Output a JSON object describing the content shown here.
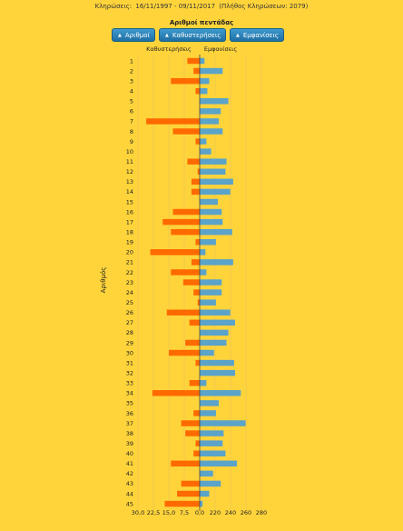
{
  "header": {
    "draws_label": "Κληρώσεις:",
    "date_range": "16/11/1997 - 09/11/2017",
    "count_text": "(Πλήθος Κληρώσεων: 2079)"
  },
  "buttons": {
    "number": "Αριθμοί",
    "delay": "Καθυστερήσεις",
    "appearances": "Εμφανίσεις"
  },
  "chart_data": {
    "type": "bar",
    "title": "Αριθμοί πεντάδας",
    "ylabel": "Αριθμός",
    "left_header": "Καθυστερήσεις",
    "right_header": "Εμφανίσεις",
    "categories": [
      "1",
      "2",
      "3",
      "4",
      "5",
      "6",
      "7",
      "8",
      "9",
      "10",
      "11",
      "12",
      "13",
      "14",
      "15",
      "16",
      "17",
      "18",
      "19",
      "20",
      "21",
      "22",
      "23",
      "24",
      "25",
      "26",
      "27",
      "28",
      "29",
      "30",
      "31",
      "32",
      "33",
      "34",
      "35",
      "36",
      "37",
      "38",
      "39",
      "40",
      "41",
      "42",
      "43",
      "44",
      "45"
    ],
    "delay_ticks": [
      "30,0",
      "22,5",
      "15,0",
      "7,5",
      "0,0"
    ],
    "appear_ticks": [
      "20",
      "220",
      "240",
      "260",
      "280"
    ],
    "delay_max": 30,
    "appear_max": 280,
    "series": [
      {
        "name": "Καθυστερήσεις",
        "color": "#ff6a00",
        "values": [
          6,
          3,
          14,
          2,
          0,
          0,
          26,
          13,
          2,
          0,
          6,
          1,
          4,
          4,
          0,
          13,
          18,
          14,
          2,
          24,
          4,
          14,
          8,
          3,
          1,
          16,
          5,
          0,
          7,
          15,
          2,
          0,
          5,
          23,
          0,
          3,
          9,
          7,
          2,
          3,
          14,
          0,
          9,
          11,
          17
        ]
      },
      {
        "name": "Εμφανίσεις",
        "color": "#5ba3c9",
        "values": [
          185,
          204,
          190,
          188,
          210,
          202,
          200,
          204,
          187,
          192,
          208,
          207,
          215,
          212,
          199,
          203,
          204,
          214,
          197,
          186,
          215,
          187,
          203,
          203,
          197,
          212,
          217,
          210,
          208,
          195,
          216,
          217,
          187,
          223,
          200,
          197,
          228,
          205,
          204,
          207,
          219,
          194,
          202,
          190,
          183
        ]
      }
    ]
  }
}
